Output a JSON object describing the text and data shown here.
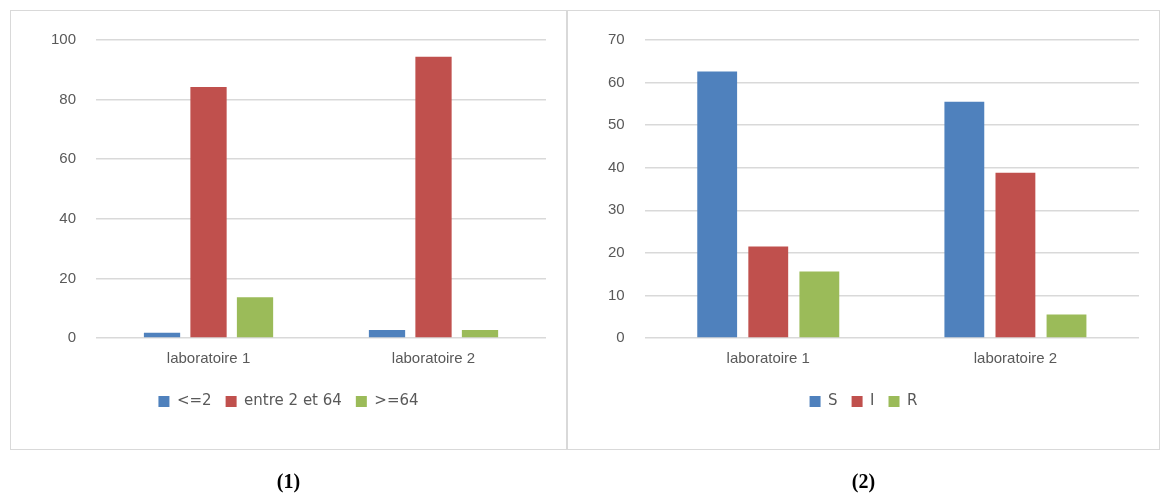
{
  "chart_data": [
    {
      "type": "bar",
      "categories": [
        "laboratoire 1",
        "laboratoire 2"
      ],
      "series": [
        {
          "name": "<=2",
          "color": "#4f81bd",
          "values": [
            1.8,
            2.7
          ]
        },
        {
          "name": "entre 2 et 64",
          "color": "#c0504d",
          "values": [
            84.2,
            94.4
          ]
        },
        {
          "name": ">=64",
          "color": "#9bbb59",
          "values": [
            13.7,
            2.7
          ]
        }
      ],
      "ylim": [
        0,
        100
      ],
      "yticks": [
        0,
        20,
        40,
        60,
        80,
        100
      ],
      "grid": "y",
      "legend": "bottom",
      "annotations": [
        "(1)"
      ]
    },
    {
      "type": "bar",
      "categories": [
        "laboratoire 1",
        "laboratoire 2"
      ],
      "series": [
        {
          "name": "S",
          "color": "#4f81bd",
          "values": [
            62.6,
            55.5
          ]
        },
        {
          "name": "I",
          "color": "#c0504d",
          "values": [
            21.5,
            38.8
          ]
        },
        {
          "name": "R",
          "color": "#9bbb59",
          "values": [
            15.6,
            5.5
          ]
        }
      ],
      "ylim": [
        0,
        70
      ],
      "yticks": [
        0,
        10,
        20,
        30,
        40,
        50,
        60,
        70
      ],
      "grid": "y",
      "legend": "bottom",
      "annotations": [
        "(2)"
      ]
    }
  ]
}
